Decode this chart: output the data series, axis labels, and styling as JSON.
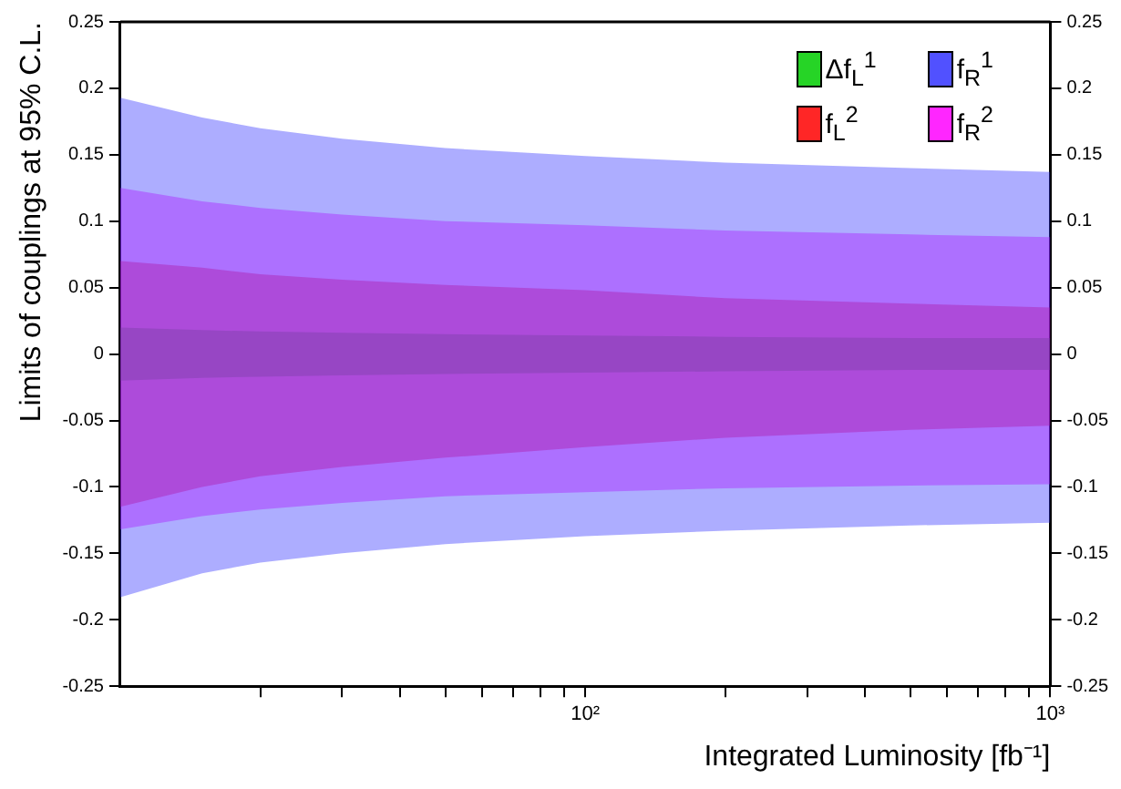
{
  "chart_data": {
    "type": "area",
    "xlabel": "Integrated Luminosity [fb⁻¹]",
    "ylabel": "Limits of couplings at 95% C.L.",
    "log": "x",
    "grid": false,
    "legend": "top right",
    "xlim": [
      10,
      1000
    ],
    "xticks": [
      {
        "value": 20,
        "label": null
      },
      {
        "value": 30,
        "label": null
      },
      {
        "value": 40,
        "label": null
      },
      {
        "value": 50,
        "label": null
      },
      {
        "value": 60,
        "label": null
      },
      {
        "value": 70,
        "label": null
      },
      {
        "value": 80,
        "label": null
      },
      {
        "value": 90,
        "label": null
      },
      {
        "value": 100,
        "label": "10²"
      },
      {
        "value": 200,
        "label": null
      },
      {
        "value": 300,
        "label": null
      },
      {
        "value": 400,
        "label": null
      },
      {
        "value": 500,
        "label": null
      },
      {
        "value": 600,
        "label": null
      },
      {
        "value": 700,
        "label": null
      },
      {
        "value": 800,
        "label": null
      },
      {
        "value": 900,
        "label": null
      },
      {
        "value": 1000,
        "label": "10³"
      }
    ],
    "ylim": [
      -0.25,
      0.25
    ],
    "yticks": [
      -0.25,
      -0.2,
      -0.15,
      -0.1,
      -0.05,
      0,
      0.05,
      0.1,
      0.15,
      0.2,
      0.25
    ],
    "y2lim": [
      -0.25,
      0.25
    ],
    "y2ticks": [
      -0.25,
      -0.2,
      -0.15,
      -0.1,
      -0.05,
      0,
      0.05,
      0.1,
      0.15,
      0.2,
      0.25
    ],
    "x": [
      10,
      15,
      20,
      30,
      50,
      100,
      200,
      500,
      1000
    ],
    "series": [
      {
        "name": "f$_{R}$$^{1}$",
        "color": "#3333ff",
        "values": [
          null,
          null,
          null,
          null,
          null,
          null,
          null,
          null,
          null
        ],
        "upper": [
          0.193,
          0.178,
          0.17,
          0.162,
          0.155,
          0.149,
          0.144,
          0.14,
          0.137
        ],
        "lower": [
          -0.183,
          -0.165,
          -0.157,
          -0.15,
          -0.143,
          -0.137,
          -0.133,
          -0.129,
          -0.127
        ]
      },
      {
        "name": "f$_{R}$$^{2}$",
        "color": "#ff00ff",
        "values": [
          null,
          null,
          null,
          null,
          null,
          null,
          null,
          null,
          null
        ],
        "upper": [
          0.125,
          0.115,
          0.11,
          0.105,
          0.1,
          0.097,
          0.093,
          0.09,
          0.088
        ],
        "lower": [
          -0.132,
          -0.122,
          -0.117,
          -0.112,
          -0.107,
          -0.104,
          -0.101,
          -0.099,
          -0.098
        ]
      },
      {
        "name": "f$_{L}$$^{2}$",
        "color": "#ff0000",
        "values": [
          null,
          null,
          null,
          null,
          null,
          null,
          null,
          null,
          null
        ],
        "upper": [
          0.07,
          0.065,
          0.06,
          0.056,
          0.052,
          0.048,
          0.042,
          0.038,
          0.035
        ],
        "lower": [
          -0.115,
          -0.1,
          -0.092,
          -0.085,
          -0.078,
          -0.07,
          -0.063,
          -0.057,
          -0.054
        ]
      },
      {
        "name": "Δf$_{L}$$^{1}$",
        "color": "#00cc00",
        "values": [
          null,
          null,
          null,
          null,
          null,
          null,
          null,
          null,
          null
        ],
        "upper": [
          0.02,
          0.018,
          0.017,
          0.016,
          0.015,
          0.014,
          0.013,
          0.012,
          0.012
        ],
        "lower": [
          -0.02,
          -0.018,
          -0.017,
          -0.016,
          -0.015,
          -0.014,
          -0.013,
          -0.012,
          -0.012
        ]
      }
    ]
  }
}
